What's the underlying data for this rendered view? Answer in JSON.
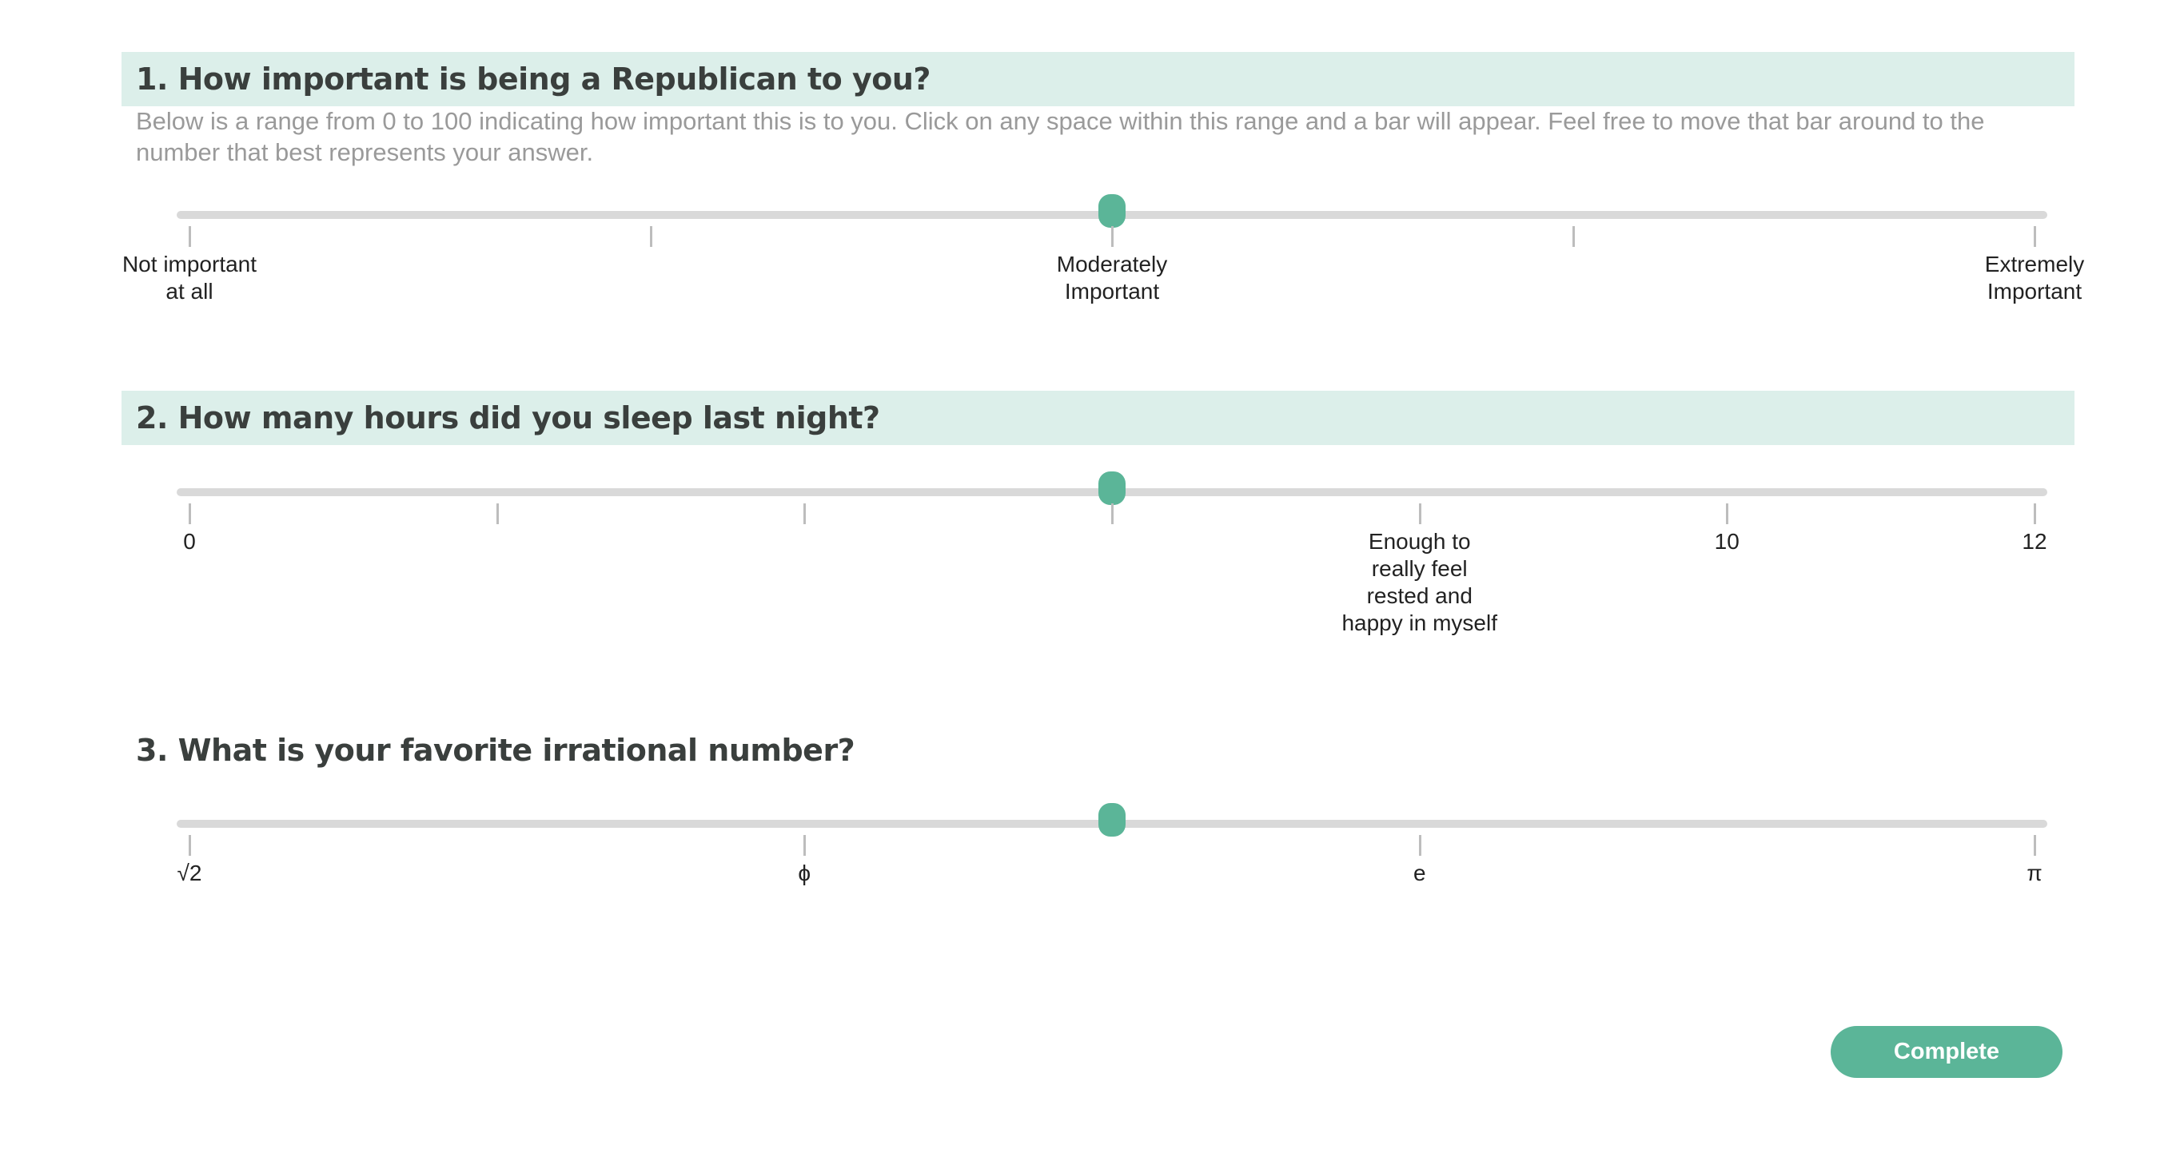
{
  "questions": [
    {
      "title": "1. How important is being a Republican to you?",
      "description": "Below is a range from 0 to 100 indicating how important this is to you. Click on any space within this range and a bar will appear. Feel free to move that bar around to the number that best represents your answer.",
      "handle_fraction": 0.5,
      "tick_fractions": [
        0,
        0.25,
        0.5,
        0.75,
        1
      ],
      "labels": [
        {
          "text": "Not important\nat all",
          "fraction": 0
        },
        {
          "text": "Moderately\nImportant",
          "fraction": 0.5
        },
        {
          "text": "Extremely\nImportant",
          "fraction": 1
        }
      ]
    },
    {
      "title": "2. How many hours did you sleep last night?",
      "handle_fraction": 0.5,
      "tick_fractions": [
        0,
        0.1667,
        0.3333,
        0.5,
        0.6667,
        0.8333,
        1
      ],
      "labels": [
        {
          "text": "0",
          "fraction": 0
        },
        {
          "text": "Enough to\nreally feel\nrested and\nhappy in myself",
          "fraction": 0.6667
        },
        {
          "text": "10",
          "fraction": 0.8333
        },
        {
          "text": "12",
          "fraction": 1
        }
      ]
    },
    {
      "title": "3. What is your favorite irrational number?",
      "handle_fraction": 0.5,
      "tick_fractions": [
        0,
        0.3333,
        0.6667,
        1
      ],
      "labels": [
        {
          "text": "√2",
          "fraction": 0
        },
        {
          "text": "ϕ",
          "fraction": 0.3333
        },
        {
          "text": "e",
          "fraction": 0.6667
        },
        {
          "text": "π",
          "fraction": 1
        }
      ]
    }
  ],
  "complete_button": {
    "label": "Complete"
  },
  "colors": {
    "accent": "#5bb598",
    "header_background": "#dcefea",
    "track": "#d9d9d9",
    "tick": "#bdbdbd",
    "description_text": "#9a9a9a"
  }
}
